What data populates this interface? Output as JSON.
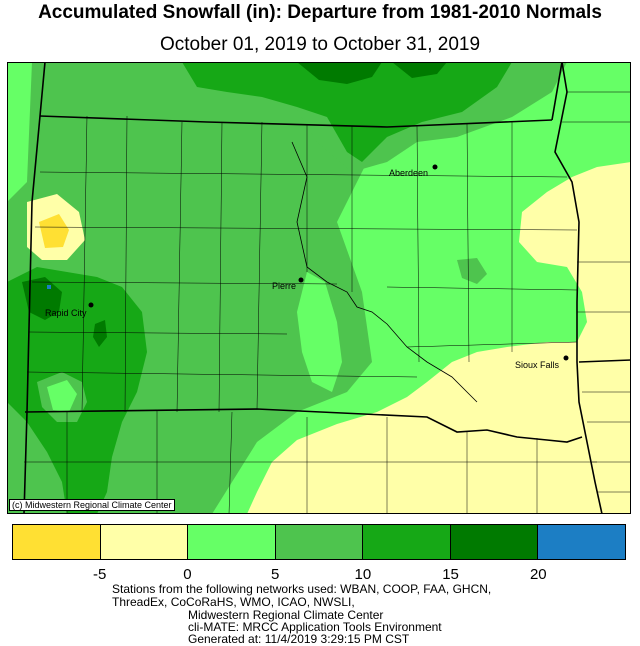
{
  "title": "Accumulated Snowfall (in): Departure from 1981-2010 Normals",
  "subtitle": "October 01, 2019 to October 31, 2019",
  "copyright": "(c) Midwestern Regional Climate Center",
  "cities": [
    {
      "name": "Aberdeen"
    },
    {
      "name": "Pierre"
    },
    {
      "name": "Rapid City"
    },
    {
      "name": "Sioux Falls"
    }
  ],
  "legend": {
    "colors": [
      "#ffe033",
      "#ffffa8",
      "#66ff66",
      "#4ec44e",
      "#16a816",
      "#007a00",
      "#1c7ec4"
    ],
    "ticks": [
      "-5",
      "0",
      "5",
      "10",
      "15",
      "20"
    ]
  },
  "footer": {
    "line1": "Stations from the following networks used: WBAN, COOP, FAA, GHCN,",
    "line2": "ThreadEx, CoCoRaHS, WMO, ICAO, NWSLI,",
    "line3": "Midwestern Regional Climate Center",
    "line4": "cli-MATE: MRCC Application Tools Environment",
    "line5": "Generated at: 11/4/2019 3:29:15 PM CST"
  }
}
